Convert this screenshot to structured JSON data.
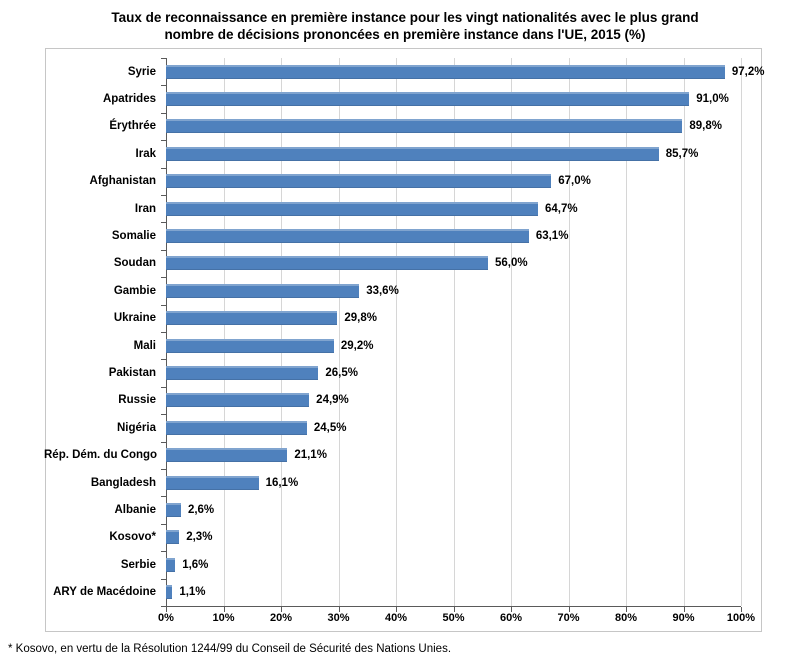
{
  "chart_data": {
    "type": "bar",
    "orientation": "horizontal",
    "title": "Taux de reconnaissance en première instance pour les vingt nationalités avec le plus grand nombre de décisions prononcées en première instance dans l'UE, 2015 (%)",
    "title_lines": [
      "Taux de reconnaissance en première instance pour les vingt nationalités avec le plus grand",
      "nombre de décisions prononcées en première instance dans l'UE, 2015 (%)"
    ],
    "categories": [
      "Syrie",
      "Apatrides",
      "Érythrée",
      "Irak",
      "Afghanistan",
      "Iran",
      "Somalie",
      "Soudan",
      "Gambie",
      "Ukraine",
      "Mali",
      "Pakistan",
      "Russie",
      "Nigéria",
      "Rép. Dém. du Congo",
      "Bangladesh",
      "Albanie",
      "Kosovo*",
      "Serbie",
      "ARY de Macédoine"
    ],
    "values": [
      97.2,
      91.0,
      89.8,
      85.7,
      67.0,
      64.7,
      63.1,
      56.0,
      33.6,
      29.8,
      29.2,
      26.5,
      24.9,
      24.5,
      21.1,
      16.1,
      2.6,
      2.3,
      1.6,
      1.1
    ],
    "value_labels": [
      "97,2%",
      "91,0%",
      "89,8%",
      "85,7%",
      "67,0%",
      "64,7%",
      "63,1%",
      "56,0%",
      "33,6%",
      "29,8%",
      "29,2%",
      "26,5%",
      "24,9%",
      "24,5%",
      "21,1%",
      "16,1%",
      "2,6%",
      "2,3%",
      "1,6%",
      "1,1%"
    ],
    "x_ticks": [
      "0%",
      "10%",
      "20%",
      "30%",
      "40%",
      "50%",
      "60%",
      "70%",
      "80%",
      "90%",
      "100%"
    ],
    "xlim": [
      0,
      100
    ],
    "xlabel": "",
    "ylabel": "",
    "grid": true,
    "legend": "none",
    "bar_color": "#4F81BD",
    "gridline_color": "#D6D6D6",
    "axis_color": "#5A5A5A",
    "footnote": "* Kosovo, en vertu de la Résolution 1244/99 du Conseil de Sécurité des Nations Unies."
  }
}
